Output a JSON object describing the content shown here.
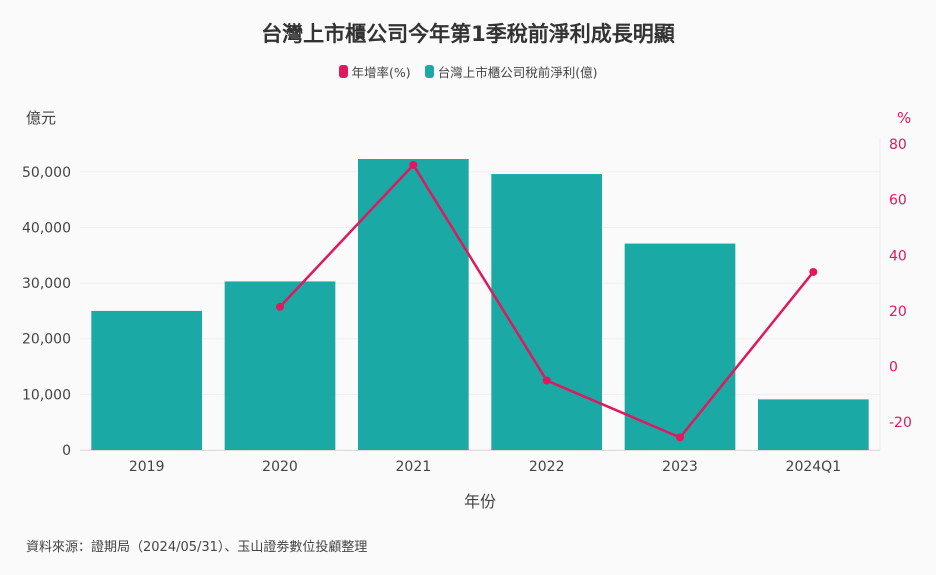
{
  "chart_data": {
    "type": "bar",
    "title": "台灣上市櫃公司今年第1季稅前淨利成長明顯",
    "categories": [
      "2019",
      "2020",
      "2021",
      "2022",
      "2023",
      "2024Q1"
    ],
    "series": [
      {
        "name": "台灣上市櫃公司稅前淨利(億)",
        "type": "bar",
        "axis": "left",
        "color": "#1aa9a5",
        "values": [
          25000,
          30300,
          52300,
          49600,
          37100,
          9100
        ]
      },
      {
        "name": "年增率(%)",
        "type": "line",
        "axis": "right",
        "color": "#e0185e",
        "values": [
          null,
          21.5,
          72.5,
          -5,
          -25.5,
          34
        ]
      }
    ],
    "xlabel": "年份",
    "ylabel": "億元",
    "y2label": "%",
    "ylim": [
      0,
      55000
    ],
    "y2lim": [
      -30,
      80
    ],
    "yticks": [
      "0",
      "10,000",
      "20,000",
      "30,000",
      "40,000",
      "50,000"
    ],
    "y2ticks": [
      "-20",
      "0",
      "20",
      "40",
      "60",
      "80"
    ],
    "grid": true,
    "legend_position": "top-center"
  },
  "source_text": "資料來源：證期局（2024/05/31）、玉山證劵數位投顧整理"
}
